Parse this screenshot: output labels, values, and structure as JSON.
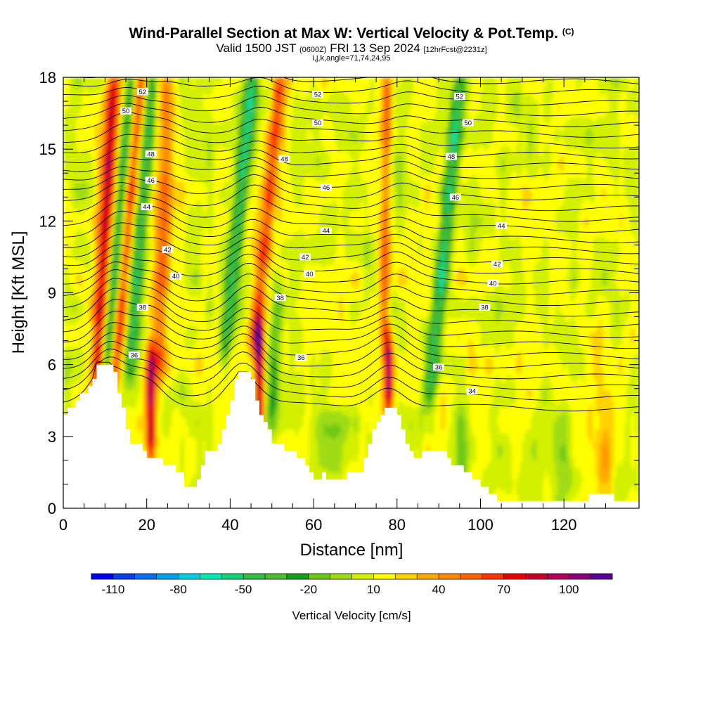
{
  "header": {
    "title": "Wind-Parallel Section at Max W: Vertical Velocity & Pot.Temp.",
    "title_mark": "(C)",
    "valid_prefix": "Valid 1500 JST",
    "valid_z": "(0600Z)",
    "valid_date": "FRI 13 Sep 2024",
    "fcst": "[12hrFcst@2231z]",
    "indices": "i,j,k,angle=71,74,24,95"
  },
  "chart_data": {
    "type": "heatmap",
    "xlabel": "Distance [nm]",
    "ylabel": "Height [Kft MSL]",
    "xlim": [
      0,
      138
    ],
    "ylim": [
      0,
      18
    ],
    "x_ticks": [
      "0",
      "20",
      "40",
      "60",
      "80",
      "100",
      "120"
    ],
    "y_ticks": [
      "0",
      "3",
      "6",
      "9",
      "12",
      "15",
      "18"
    ],
    "colorbar": {
      "label": "Vertical Velocity [cm/s]",
      "tick_labels": [
        "-110",
        "-80",
        "-50",
        "-20",
        "10",
        "40",
        "70",
        "100"
      ],
      "bins": [
        -120,
        -110,
        -100,
        -90,
        -80,
        -70,
        -60,
        -50,
        -40,
        -30,
        -20,
        -10,
        0,
        10,
        20,
        30,
        40,
        50,
        60,
        70,
        80,
        90,
        100,
        110
      ],
      "colors": [
        "#0000f0",
        "#0a3ce8",
        "#0a6ef0",
        "#00a0f0",
        "#00d0e0",
        "#00e8b4",
        "#14d278",
        "#32be46",
        "#50be32",
        "#14a01e",
        "#6ec814",
        "#a0dc14",
        "#d2f000",
        "#ffff00",
        "#ffd200",
        "#ffaa00",
        "#ff8c00",
        "#ff6400",
        "#ff3200",
        "#e60000",
        "#c80028",
        "#b4005a",
        "#8c0078",
        "#5a0096"
      ]
    },
    "terrain_kft": [
      [
        0,
        4.0
      ],
      [
        2,
        4.3
      ],
      [
        3,
        4.5
      ],
      [
        5,
        4.8
      ],
      [
        7,
        5.3
      ],
      [
        8,
        6.0
      ],
      [
        11,
        6.0
      ],
      [
        12,
        5.6
      ],
      [
        13,
        4.9
      ],
      [
        14,
        4.3
      ],
      [
        15,
        3.3
      ],
      [
        16,
        2.7
      ],
      [
        17,
        2.6
      ],
      [
        18,
        2.6
      ],
      [
        19,
        2.3
      ],
      [
        20,
        2.0
      ],
      [
        23,
        1.95
      ],
      [
        24,
        1.75
      ],
      [
        26,
        1.65
      ],
      [
        28,
        1.35
      ],
      [
        29,
        1.0
      ],
      [
        31,
        1.0
      ],
      [
        32,
        1.3
      ],
      [
        33,
        1.65
      ],
      [
        34,
        2.25
      ],
      [
        36,
        2.35
      ],
      [
        37,
        2.6
      ],
      [
        38,
        3.25
      ],
      [
        39,
        4.0
      ],
      [
        40,
        4.6
      ],
      [
        41,
        5.3
      ],
      [
        42,
        5.6
      ],
      [
        44,
        5.6
      ],
      [
        45,
        5.3
      ],
      [
        46,
        4.6
      ],
      [
        47,
        4.0
      ],
      [
        48,
        3.6
      ],
      [
        49,
        3.3
      ],
      [
        50,
        2.6
      ],
      [
        52,
        2.6
      ],
      [
        53,
        2.3
      ],
      [
        55,
        2.3
      ],
      [
        57,
        2.0
      ],
      [
        59,
        1.6
      ],
      [
        60,
        1.3
      ],
      [
        62,
        1.35
      ],
      [
        64,
        1.3
      ],
      [
        68,
        1.35
      ],
      [
        71,
        1.6
      ],
      [
        72,
        2.0
      ],
      [
        73,
        2.6
      ],
      [
        74,
        3.3
      ],
      [
        75,
        3.65
      ],
      [
        76,
        4.0
      ],
      [
        77,
        4.3
      ],
      [
        79,
        4.3
      ],
      [
        80,
        4.0
      ],
      [
        81,
        3.3
      ],
      [
        82,
        2.6
      ],
      [
        83,
        2.3
      ],
      [
        85,
        2.0
      ],
      [
        86,
        2.3
      ],
      [
        88,
        2.35
      ],
      [
        91,
        2.35
      ],
      [
        92,
        2.0
      ],
      [
        95,
        1.65
      ],
      [
        97,
        1.35
      ],
      [
        100,
        1.0
      ],
      [
        102,
        0.65
      ],
      [
        104,
        0.35
      ],
      [
        125,
        0.35
      ],
      [
        126,
        0.65
      ],
      [
        131,
        0.65
      ],
      [
        132,
        0.35
      ],
      [
        138,
        0.35
      ]
    ],
    "updrafts": [
      {
        "x_base": 8,
        "z_base": 5.5,
        "slope_nm_per_kft": 0.33,
        "peak_cms": 70,
        "width_nm": 1.7,
        "z_top": 18
      },
      {
        "x_base": 12,
        "z_base": 5.0,
        "slope_nm_per_kft": 0.5,
        "peak_cms": 55,
        "width_nm": 1.5,
        "z_top": 18
      },
      {
        "x_base": 21,
        "z_base": 2.5,
        "slope_nm_per_kft": 0.0,
        "peak_cms": 75,
        "width_nm": 1.2,
        "z_top": 6.5
      },
      {
        "x_base": 23,
        "z_base": 6.0,
        "slope_nm_per_kft": 0.15,
        "peak_cms": 45,
        "width_nm": 2.0,
        "z_top": 18
      },
      {
        "x_base": 47,
        "z_base": 3.0,
        "slope_nm_per_kft": 0.0,
        "peak_cms": 85,
        "width_nm": 1.1,
        "z_top": 7.5
      },
      {
        "x_base": 46,
        "z_base": 7.0,
        "slope_nm_per_kft": 0.55,
        "peak_cms": 50,
        "width_nm": 1.7,
        "z_top": 18
      },
      {
        "x_base": 78,
        "z_base": 4.5,
        "slope_nm_per_kft": 0.0,
        "peak_cms": 75,
        "width_nm": 1.1,
        "z_top": 7.0
      },
      {
        "x_base": 77,
        "z_base": 7.0,
        "slope_nm_per_kft": 0.05,
        "peak_cms": 45,
        "width_nm": 1.2,
        "z_top": 18
      },
      {
        "x_base": 130,
        "z_base": 1.5,
        "slope_nm_per_kft": 0.0,
        "peak_cms": 25,
        "width_nm": 2.2,
        "z_top": 5.0
      }
    ],
    "downdrafts": [
      {
        "x_base": 10,
        "z_base": 5.0,
        "slope_nm_per_kft": 0.5,
        "peak_cms": -55,
        "width_nm": 1.4,
        "z_top": 18
      },
      {
        "x_base": 16,
        "z_base": 6.0,
        "slope_nm_per_kft": 0.45,
        "peak_cms": -50,
        "width_nm": 1.4,
        "z_top": 18
      },
      {
        "x_base": 39,
        "z_base": 7.0,
        "slope_nm_per_kft": 0.58,
        "peak_cms": -60,
        "width_nm": 1.6,
        "z_top": 18
      },
      {
        "x_base": 50,
        "z_base": 4.0,
        "slope_nm_per_kft": 0.3,
        "peak_cms": -30,
        "width_nm": 1.6,
        "z_top": 9.0
      },
      {
        "x_base": 64,
        "z_base": 1.5,
        "slope_nm_per_kft": 0.0,
        "peak_cms": -25,
        "width_nm": 3.0,
        "z_top": 3.5
      },
      {
        "x_base": 88,
        "z_base": 5.0,
        "slope_nm_per_kft": 0.55,
        "peak_cms": -60,
        "width_nm": 1.6,
        "z_top": 18
      },
      {
        "x_base": 96,
        "z_base": 1.0,
        "slope_nm_per_kft": 0.0,
        "peak_cms": -20,
        "width_nm": 1.5,
        "z_top": 4.0
      },
      {
        "x_base": 120,
        "z_base": 1.0,
        "slope_nm_per_kft": 0.0,
        "peak_cms": -20,
        "width_nm": 1.8,
        "z_top": 4.0
      }
    ],
    "isentropes_labels": [
      {
        "label": "52",
        "x": 19,
        "z": 17.4
      },
      {
        "label": "52",
        "x": 61,
        "z": 17.3
      },
      {
        "label": "52",
        "x": 95,
        "z": 17.2
      },
      {
        "label": "50",
        "x": 15,
        "z": 16.6
      },
      {
        "label": "50",
        "x": 61,
        "z": 16.1
      },
      {
        "label": "50",
        "x": 97,
        "z": 16.1
      },
      {
        "label": "48",
        "x": 21,
        "z": 14.8
      },
      {
        "label": "48",
        "x": 53,
        "z": 14.6
      },
      {
        "label": "48",
        "x": 93,
        "z": 14.7
      },
      {
        "label": "46",
        "x": 21,
        "z": 13.7
      },
      {
        "label": "46",
        "x": 63,
        "z": 13.4
      },
      {
        "label": "46",
        "x": 94,
        "z": 13.0
      },
      {
        "label": "44",
        "x": 20,
        "z": 12.6
      },
      {
        "label": "44",
        "x": 63,
        "z": 11.6
      },
      {
        "label": "44",
        "x": 105,
        "z": 11.8
      },
      {
        "label": "42",
        "x": 25,
        "z": 10.8
      },
      {
        "label": "42",
        "x": 58,
        "z": 10.5
      },
      {
        "label": "42",
        "x": 104,
        "z": 10.2
      },
      {
        "label": "40",
        "x": 27,
        "z": 9.7
      },
      {
        "label": "40",
        "x": 59,
        "z": 9.8
      },
      {
        "label": "40",
        "x": 103,
        "z": 9.4
      },
      {
        "label": "38",
        "x": 19,
        "z": 8.4
      },
      {
        "label": "38",
        "x": 52,
        "z": 8.8
      },
      {
        "label": "38",
        "x": 101,
        "z": 8.4
      },
      {
        "label": "36",
        "x": 17,
        "z": 6.4
      },
      {
        "label": "36",
        "x": 57,
        "z": 6.3
      },
      {
        "label": "36",
        "x": 90,
        "z": 5.9
      },
      {
        "label": "34",
        "x": 98,
        "z": 4.9
      }
    ]
  }
}
